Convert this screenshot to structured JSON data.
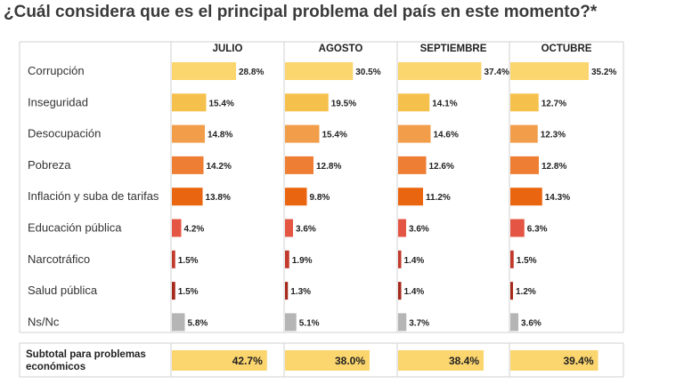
{
  "title": "¿Cuál considera que es el principal problema del país en este momento?*",
  "chart_data": {
    "type": "bar",
    "orientation": "horizontal",
    "months": [
      "JULIO",
      "AGOSTO",
      "SEPTIEMBRE",
      "OCTUBRE"
    ],
    "categories": [
      "Corrupción",
      "Inseguridad",
      "Desocupación",
      "Pobreza",
      "Inflación y suba de tarifas",
      "Educación pública",
      "Narcotráfico",
      "Salud pública",
      "Ns/Nc"
    ],
    "category_colors": [
      "#fbd56e",
      "#f6c04c",
      "#f19d4a",
      "#ee7e34",
      "#ea650f",
      "#e55543",
      "#c23a2c",
      "#a52a1c",
      "#b5b5b5"
    ],
    "series": [
      {
        "name": "JULIO",
        "values": [
          28.8,
          15.4,
          14.8,
          14.2,
          13.8,
          4.2,
          1.5,
          1.5,
          5.8
        ]
      },
      {
        "name": "AGOSTO",
        "values": [
          30.5,
          19.5,
          15.4,
          12.8,
          9.8,
          3.6,
          1.9,
          1.3,
          5.1
        ]
      },
      {
        "name": "SEPTIEMBRE",
        "values": [
          37.4,
          14.1,
          14.6,
          12.6,
          11.2,
          3.6,
          1.4,
          1.4,
          3.7
        ]
      },
      {
        "name": "OCTUBRE",
        "values": [
          35.2,
          12.7,
          12.3,
          12.8,
          14.3,
          6.3,
          1.5,
          1.2,
          3.6
        ]
      }
    ],
    "subtotal": {
      "label_line1": "Subtotal para problemas",
      "label_line2": "económicos",
      "values": [
        42.7,
        38.0,
        38.4,
        39.4
      ],
      "color": "#fbd56e"
    },
    "value_suffix": "%",
    "grid": "column separators"
  }
}
